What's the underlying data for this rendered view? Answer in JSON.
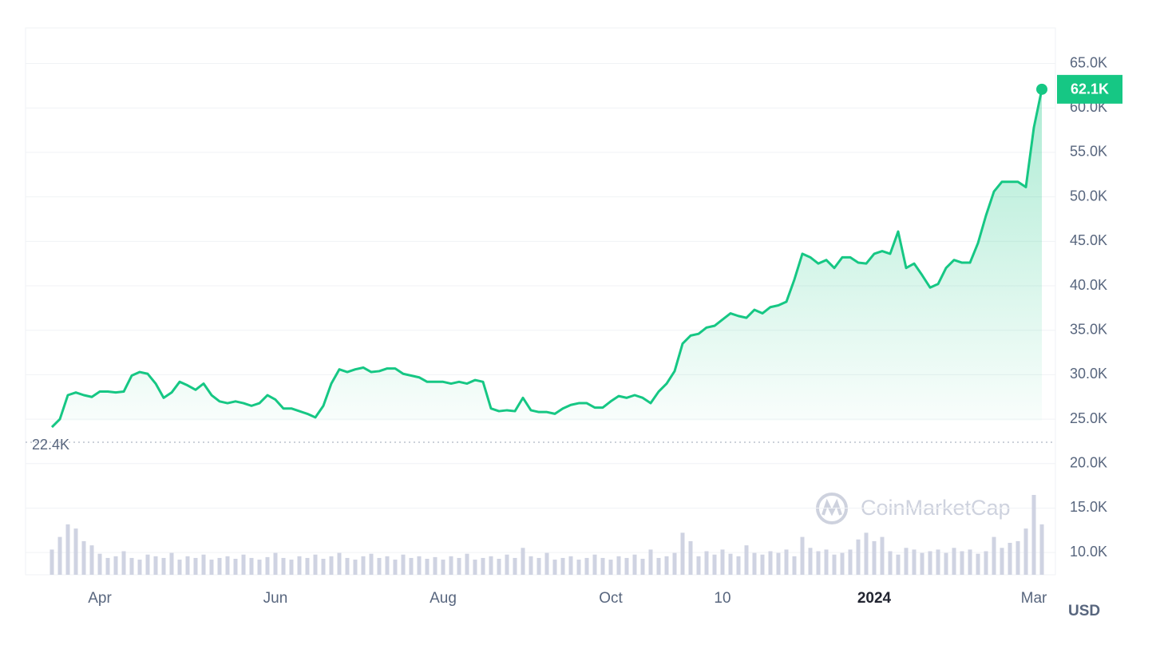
{
  "chart_data": {
    "type": "line",
    "categories": [
      null,
      null,
      null,
      null,
      null,
      null,
      "Apr",
      null,
      null,
      null,
      null,
      null,
      null,
      null,
      null,
      null,
      null,
      null,
      null,
      null,
      null,
      null,
      null,
      null,
      null,
      null,
      null,
      null,
      "Jun",
      null,
      null,
      null,
      null,
      null,
      null,
      null,
      null,
      null,
      null,
      null,
      null,
      null,
      null,
      null,
      null,
      null,
      null,
      null,
      null,
      "Aug",
      null,
      null,
      null,
      null,
      null,
      null,
      null,
      null,
      null,
      null,
      null,
      null,
      null,
      null,
      null,
      null,
      null,
      null,
      null,
      null,
      "Oct",
      null,
      null,
      null,
      null,
      null,
      null,
      null,
      null,
      null,
      null,
      null,
      null,
      null,
      "10",
      null,
      null,
      null,
      null,
      null,
      null,
      null,
      null,
      null,
      null,
      null,
      null,
      null,
      null,
      null,
      null,
      null,
      null,
      "2024",
      null,
      null,
      null,
      null,
      null,
      null,
      null,
      null,
      null,
      null,
      null,
      null,
      null,
      null,
      null,
      null,
      null,
      null,
      null,
      "Mar",
      null
    ],
    "series": [
      {
        "color": "#16c784",
        "values": [
          24100,
          25000,
          27700,
          28000,
          27700,
          27500,
          28100,
          28100,
          28000,
          28100,
          29900,
          30300,
          30100,
          29000,
          27400,
          28000,
          29200,
          28800,
          28300,
          29000,
          27700,
          27000,
          26800,
          27000,
          26800,
          26500,
          26800,
          27700,
          27200,
          26200,
          26200,
          25900,
          25600,
          25200,
          26500,
          29000,
          30600,
          30300,
          30600,
          30800,
          30300,
          30400,
          30700,
          30700,
          30100,
          29900,
          29700,
          29200,
          29200,
          29200,
          29000,
          29200,
          29000,
          29400,
          29200,
          26200,
          25900,
          26000,
          25900,
          27400,
          26000,
          25800,
          25800,
          25600,
          26200,
          26600,
          26800,
          26800,
          26300,
          26300,
          27000,
          27600,
          27400,
          27700,
          27400,
          26800,
          28100,
          29000,
          30400,
          33500,
          34400,
          34600,
          35300,
          35500,
          36200,
          36900,
          36600,
          36400,
          37300,
          36900,
          37600,
          37800,
          38200,
          40700,
          43600,
          43200,
          42500,
          42900,
          42000,
          43200,
          43200,
          42600,
          42500,
          43600,
          43900,
          43600,
          46100,
          42000,
          42500,
          41200,
          39800,
          40200,
          42000,
          42900,
          42600,
          42600,
          44800,
          47900,
          50600,
          51700,
          51700,
          51700,
          51100,
          57800,
          62100
        ]
      }
    ],
    "volume": {
      "color": "#cfd3e2",
      "values": [
        30,
        45,
        60,
        55,
        40,
        35,
        25,
        20,
        22,
        28,
        20,
        18,
        24,
        22,
        20,
        26,
        18,
        22,
        20,
        24,
        18,
        20,
        22,
        19,
        24,
        20,
        18,
        21,
        26,
        20,
        18,
        22,
        20,
        24,
        19,
        22,
        26,
        20,
        18,
        22,
        25,
        20,
        22,
        18,
        24,
        20,
        22,
        19,
        21,
        18,
        22,
        20,
        25,
        18,
        20,
        22,
        19,
        24,
        20,
        32,
        22,
        20,
        26,
        18,
        20,
        22,
        18,
        20,
        24,
        20,
        18,
        22,
        20,
        24,
        19,
        30,
        20,
        22,
        26,
        50,
        40,
        22,
        28,
        24,
        30,
        25,
        22,
        35,
        26,
        24,
        28,
        26,
        30,
        22,
        45,
        32,
        28,
        30,
        24,
        26,
        30,
        42,
        50,
        40,
        45,
        28,
        24,
        32,
        30,
        26,
        28,
        30,
        26,
        32,
        28,
        30,
        25,
        28,
        45,
        32,
        38,
        40,
        55,
        95,
        60
      ]
    },
    "ylim": [
      7500,
      69000
    ],
    "yticks": [
      {
        "value": 10000,
        "label": "10.0K"
      },
      {
        "value": 15000,
        "label": "15.0K"
      },
      {
        "value": 20000,
        "label": "20.0K"
      },
      {
        "value": 25000,
        "label": "25.0K"
      },
      {
        "value": 30000,
        "label": "30.0K"
      },
      {
        "value": 35000,
        "label": "35.0K"
      },
      {
        "value": 40000,
        "label": "40.0K"
      },
      {
        "value": 45000,
        "label": "45.0K"
      },
      {
        "value": 50000,
        "label": "50.0K"
      },
      {
        "value": 55000,
        "label": "55.0K"
      },
      {
        "value": 60000,
        "label": "60.0K"
      },
      {
        "value": 65000,
        "label": "65.0K"
      }
    ],
    "grid": true,
    "start_price": {
      "value": 22400,
      "label": "22.4K"
    },
    "current_price": {
      "value": 62100,
      "label": "62.1K"
    },
    "currency": "USD",
    "watermark": "CoinMarketCap"
  }
}
